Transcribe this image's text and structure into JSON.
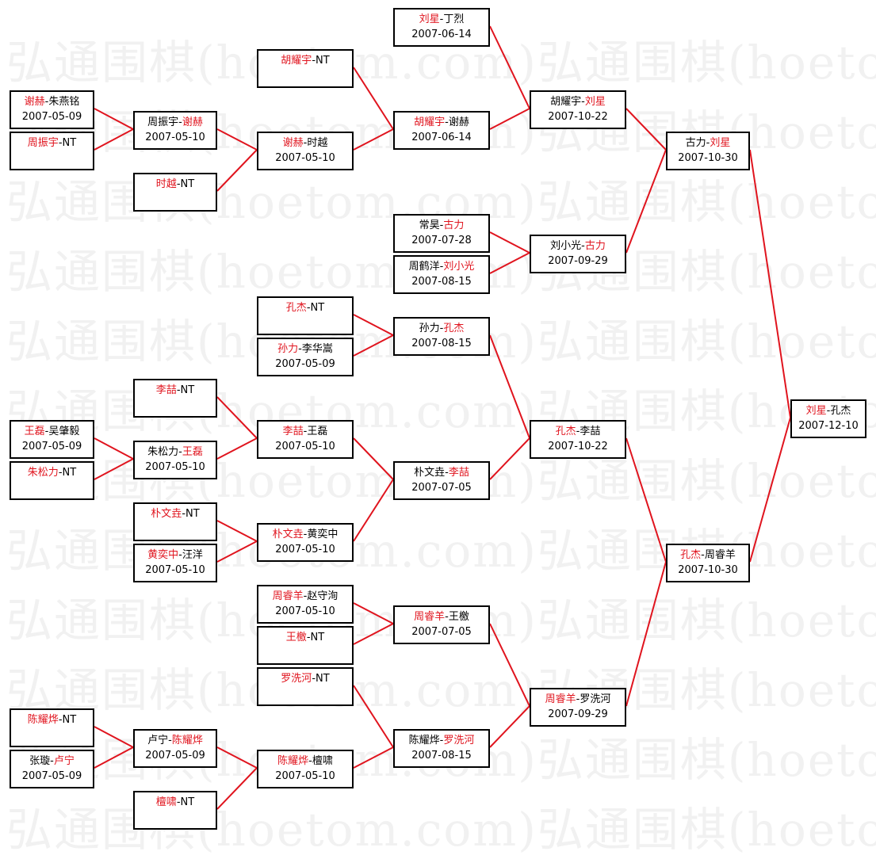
{
  "watermark": "弘通围棋(hoetom.com)",
  "colors": {
    "winner": "#e0141e",
    "connector": "#e0141e",
    "box_border": "#000000",
    "watermark": "#f1f1f1"
  },
  "separator": "-",
  "matches": [
    {
      "id": "m1",
      "p1": "刘星",
      "p2": "丁烈",
      "winner": 1,
      "date": "2007-06-14"
    },
    {
      "id": "m2",
      "p1": "胡耀宇",
      "p2": "NT",
      "winner": 1,
      "date": ""
    },
    {
      "id": "m3",
      "p1": "谢赫",
      "p2": "朱燕铭",
      "winner": 1,
      "date": "2007-05-09"
    },
    {
      "id": "m4",
      "p1": "周振宇",
      "p2": "NT",
      "winner": 1,
      "date": ""
    },
    {
      "id": "m5",
      "p1": "周振宇",
      "p2": "谢赫",
      "winner": 2,
      "date": "2007-05-10",
      "from": [
        "m3",
        "m4"
      ]
    },
    {
      "id": "m6",
      "p1": "谢赫",
      "p2": "时越",
      "winner": 1,
      "date": "2007-05-10",
      "from": [
        "m5",
        "m7"
      ]
    },
    {
      "id": "m7",
      "p1": "时越",
      "p2": "NT",
      "winner": 1,
      "date": ""
    },
    {
      "id": "m8",
      "p1": "胡耀宇",
      "p2": "谢赫",
      "winner": 1,
      "date": "2007-06-14",
      "from": [
        "m2",
        "m6"
      ]
    },
    {
      "id": "m9",
      "p1": "胡耀宇",
      "p2": "刘星",
      "winner": 2,
      "date": "2007-10-22",
      "from": [
        "m1",
        "m8"
      ]
    },
    {
      "id": "m10",
      "p1": "古力",
      "p2": "刘星",
      "winner": 2,
      "date": "2007-10-30",
      "from": [
        "m9",
        "m13"
      ]
    },
    {
      "id": "m11",
      "p1": "常昊",
      "p2": "古力",
      "winner": 2,
      "date": "2007-07-28"
    },
    {
      "id": "m12",
      "p1": "周鹤洋",
      "p2": "刘小光",
      "winner": 2,
      "date": "2007-08-15"
    },
    {
      "id": "m13",
      "p1": "刘小光",
      "p2": "古力",
      "winner": 2,
      "date": "2007-09-29",
      "from": [
        "m11",
        "m12"
      ]
    },
    {
      "id": "m14",
      "p1": "孔杰",
      "p2": "NT",
      "winner": 1,
      "date": ""
    },
    {
      "id": "m15",
      "p1": "孙力",
      "p2": "李华嵩",
      "winner": 1,
      "date": "2007-05-09"
    },
    {
      "id": "m16",
      "p1": "孙力",
      "p2": "孔杰",
      "winner": 2,
      "date": "2007-08-15",
      "from": [
        "m14",
        "m15"
      ]
    },
    {
      "id": "m17",
      "p1": "李喆",
      "p2": "NT",
      "winner": 1,
      "date": ""
    },
    {
      "id": "m18",
      "p1": "王磊",
      "p2": "吴肇毅",
      "winner": 1,
      "date": "2007-05-09"
    },
    {
      "id": "m19",
      "p1": "朱松力",
      "p2": "NT",
      "winner": 1,
      "date": ""
    },
    {
      "id": "m20",
      "p1": "朱松力",
      "p2": "王磊",
      "winner": 2,
      "date": "2007-05-10",
      "from": [
        "m18",
        "m19"
      ]
    },
    {
      "id": "m21",
      "p1": "李喆",
      "p2": "王磊",
      "winner": 1,
      "date": "2007-05-10",
      "from": [
        "m17",
        "m20"
      ]
    },
    {
      "id": "m22",
      "p1": "孔杰",
      "p2": "李喆",
      "winner": 1,
      "date": "2007-10-22",
      "from": [
        "m16",
        "m23"
      ]
    },
    {
      "id": "m23",
      "p1": "朴文垚",
      "p2": "李喆",
      "winner": 2,
      "date": "2007-07-05",
      "from": [
        "m21",
        "m26"
      ]
    },
    {
      "id": "m24",
      "p1": "朴文垚",
      "p2": "NT",
      "winner": 1,
      "date": ""
    },
    {
      "id": "m25",
      "p1": "黄奕中",
      "p2": "汪洋",
      "winner": 1,
      "date": "2007-05-10"
    },
    {
      "id": "m26",
      "p1": "朴文垚",
      "p2": "黄奕中",
      "winner": 1,
      "date": "2007-05-10",
      "from": [
        "m24",
        "m25"
      ]
    },
    {
      "id": "m27",
      "p1": "刘星",
      "p2": "孔杰",
      "winner": 1,
      "date": "2007-12-10",
      "from": [
        "m10",
        "m28"
      ]
    },
    {
      "id": "m28",
      "p1": "孔杰",
      "p2": "周睿羊",
      "winner": 1,
      "date": "2007-10-30",
      "from": [
        "m22",
        "m33"
      ]
    },
    {
      "id": "m29",
      "p1": "周睿羊",
      "p2": "赵守洵",
      "winner": 1,
      "date": "2007-05-10"
    },
    {
      "id": "m30",
      "p1": "王檄",
      "p2": "NT",
      "winner": 1,
      "date": ""
    },
    {
      "id": "m31",
      "p1": "周睿羊",
      "p2": "王檄",
      "winner": 1,
      "date": "2007-07-05",
      "from": [
        "m29",
        "m30"
      ]
    },
    {
      "id": "m32",
      "p1": "罗洗河",
      "p2": "NT",
      "winner": 1,
      "date": ""
    },
    {
      "id": "m33",
      "p1": "周睿羊",
      "p2": "罗洗河",
      "winner": 1,
      "date": "2007-09-29",
      "from": [
        "m31",
        "m37"
      ]
    },
    {
      "id": "m34",
      "p1": "陈耀烨",
      "p2": "NT",
      "winner": 1,
      "date": ""
    },
    {
      "id": "m35",
      "p1": "张璇",
      "p2": "卢宁",
      "winner": 2,
      "date": "2007-05-09"
    },
    {
      "id": "m36",
      "p1": "卢宁",
      "p2": "陈耀烨",
      "winner": 2,
      "date": "2007-05-09",
      "from": [
        "m34",
        "m35"
      ]
    },
    {
      "id": "m37",
      "p1": "陈耀烨",
      "p2": "罗洗河",
      "winner": 2,
      "date": "2007-08-15",
      "from": [
        "m32",
        "m38"
      ]
    },
    {
      "id": "m38",
      "p1": "陈耀烨",
      "p2": "檀啸",
      "winner": 1,
      "date": "2007-05-10",
      "from": [
        "m36",
        "m39"
      ]
    },
    {
      "id": "m39",
      "p1": "檀啸",
      "p2": "NT",
      "winner": 1,
      "date": ""
    }
  ]
}
